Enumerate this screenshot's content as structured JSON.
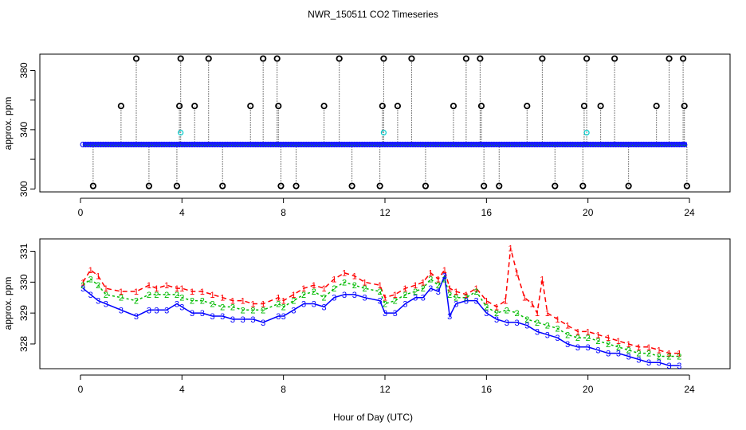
{
  "chart_data": [
    {
      "type": "scatter",
      "panel": "top",
      "title": "NWR_150511  CO2 Timeseries",
      "xlabel": "",
      "ylabel": "approx. ppm",
      "xlim": [
        -1.6,
        25.6
      ],
      "ylim": [
        298,
        391
      ],
      "x_ticks": [
        0,
        4,
        8,
        12,
        16,
        20,
        24
      ],
      "y_ticks": [
        300,
        340,
        380
      ],
      "y_ticks_minor": [
        320,
        360
      ],
      "grid": false,
      "baseline_ppm": 330,
      "baseline_x": [
        0.1,
        23.9
      ],
      "colors": {
        "baseline": "#1a1aff",
        "lines": "#00aa00",
        "spike": "#000000",
        "cyan": "#00cccc"
      },
      "spikes": [
        {
          "x": 0.5,
          "y": 302
        },
        {
          "x": 1.6,
          "y": 356
        },
        {
          "x": 2.2,
          "y": 388
        },
        {
          "x": 2.7,
          "y": 302
        },
        {
          "x": 3.8,
          "y": 302
        },
        {
          "x": 3.9,
          "y": 356
        },
        {
          "x": 3.95,
          "y": 388
        },
        {
          "x": 4.5,
          "y": 356
        },
        {
          "x": 5.05,
          "y": 388
        },
        {
          "x": 5.6,
          "y": 302
        },
        {
          "x": 6.7,
          "y": 356
        },
        {
          "x": 7.2,
          "y": 388
        },
        {
          "x": 7.75,
          "y": 388
        },
        {
          "x": 7.8,
          "y": 356
        },
        {
          "x": 7.9,
          "y": 302
        },
        {
          "x": 8.5,
          "y": 302
        },
        {
          "x": 9.6,
          "y": 356
        },
        {
          "x": 10.2,
          "y": 388
        },
        {
          "x": 10.7,
          "y": 302
        },
        {
          "x": 11.8,
          "y": 302
        },
        {
          "x": 11.9,
          "y": 356
        },
        {
          "x": 11.95,
          "y": 388
        },
        {
          "x": 12.5,
          "y": 356
        },
        {
          "x": 13.05,
          "y": 388
        },
        {
          "x": 13.6,
          "y": 302
        },
        {
          "x": 14.7,
          "y": 356
        },
        {
          "x": 15.2,
          "y": 388
        },
        {
          "x": 15.75,
          "y": 388
        },
        {
          "x": 15.8,
          "y": 356
        },
        {
          "x": 15.9,
          "y": 302
        },
        {
          "x": 16.5,
          "y": 302
        },
        {
          "x": 17.6,
          "y": 356
        },
        {
          "x": 18.2,
          "y": 388
        },
        {
          "x": 18.7,
          "y": 302
        },
        {
          "x": 19.8,
          "y": 302
        },
        {
          "x": 19.85,
          "y": 356
        },
        {
          "x": 19.95,
          "y": 388
        },
        {
          "x": 20.5,
          "y": 356
        },
        {
          "x": 21.05,
          "y": 388
        },
        {
          "x": 21.6,
          "y": 302
        },
        {
          "x": 22.7,
          "y": 356
        },
        {
          "x": 23.2,
          "y": 388
        },
        {
          "x": 23.75,
          "y": 388
        },
        {
          "x": 23.8,
          "y": 356
        },
        {
          "x": 23.9,
          "y": 302
        }
      ],
      "cyan_points": [
        {
          "x": 3.95,
          "y": 338
        },
        {
          "x": 11.95,
          "y": 338
        },
        {
          "x": 19.95,
          "y": 338
        }
      ]
    },
    {
      "type": "line",
      "panel": "bottom",
      "title": "",
      "xlabel": "Hour of Day (UTC)",
      "ylabel": "approx. ppm",
      "xlim": [
        -1.6,
        25.6
      ],
      "ylim": [
        327.2,
        331.4
      ],
      "x_ticks": [
        0,
        4,
        8,
        12,
        16,
        20,
        24
      ],
      "y_ticks": [
        328,
        329,
        330,
        331
      ],
      "grid": false,
      "series": [
        {
          "name": "1",
          "marker": "1",
          "color": "#ff0000",
          "x": [
            0.1,
            0.4,
            0.7,
            1.0,
            1.6,
            2.2,
            2.7,
            3.0,
            3.4,
            3.8,
            4.0,
            4.4,
            4.8,
            5.2,
            5.6,
            6.0,
            6.4,
            6.8,
            7.2,
            7.8,
            8.0,
            8.4,
            8.8,
            9.2,
            9.6,
            10.0,
            10.4,
            10.8,
            11.2,
            11.8,
            12.0,
            12.4,
            12.8,
            13.2,
            13.5,
            13.8,
            14.1,
            14.35,
            14.55,
            14.8,
            15.2,
            15.6,
            16.0,
            16.4,
            16.75,
            16.95,
            17.2,
            17.5,
            17.8,
            18.0,
            18.2,
            18.4,
            18.8,
            19.2,
            19.6,
            20.0,
            20.4,
            20.8,
            21.2,
            21.6,
            22.0,
            22.4,
            22.8,
            23.2,
            23.6
          ],
          "values": [
            330.0,
            330.4,
            330.2,
            329.8,
            329.7,
            329.7,
            329.9,
            329.8,
            329.9,
            329.8,
            329.8,
            329.7,
            329.7,
            329.6,
            329.5,
            329.4,
            329.4,
            329.3,
            329.3,
            329.5,
            329.4,
            329.6,
            329.8,
            329.9,
            329.8,
            330.1,
            330.3,
            330.2,
            330.0,
            329.9,
            329.5,
            329.6,
            329.8,
            329.9,
            330.0,
            330.3,
            330.1,
            330.4,
            329.8,
            329.7,
            329.6,
            329.8,
            329.4,
            329.2,
            329.4,
            331.1,
            330.3,
            329.5,
            329.3,
            329.0,
            330.1,
            329.0,
            328.8,
            328.6,
            328.4,
            328.4,
            328.3,
            328.2,
            328.1,
            328.0,
            327.9,
            327.9,
            327.8,
            327.7,
            327.7
          ]
        },
        {
          "name": "2",
          "marker": "2",
          "color": "#00bb00",
          "x": [
            0.1,
            0.4,
            0.7,
            1.0,
            1.6,
            2.2,
            2.7,
            3.0,
            3.4,
            3.8,
            4.0,
            4.4,
            4.8,
            5.2,
            5.6,
            6.0,
            6.4,
            6.8,
            7.2,
            7.8,
            8.0,
            8.4,
            8.8,
            9.2,
            9.6,
            10.0,
            10.4,
            10.8,
            11.2,
            11.8,
            12.0,
            12.4,
            12.8,
            13.2,
            13.5,
            13.8,
            14.1,
            14.35,
            14.55,
            14.8,
            15.2,
            15.6,
            16.0,
            16.4,
            16.8,
            17.2,
            17.6,
            18.0,
            18.4,
            18.8,
            19.2,
            19.6,
            20.0,
            20.4,
            20.8,
            21.2,
            21.6,
            22.0,
            22.4,
            22.8,
            23.2,
            23.6
          ],
          "values": [
            329.9,
            330.1,
            329.9,
            329.6,
            329.5,
            329.4,
            329.6,
            329.6,
            329.6,
            329.6,
            329.5,
            329.4,
            329.4,
            329.3,
            329.2,
            329.2,
            329.1,
            329.1,
            329.1,
            329.3,
            329.2,
            329.4,
            329.6,
            329.7,
            329.5,
            329.8,
            330.0,
            329.9,
            329.8,
            329.7,
            329.3,
            329.4,
            329.6,
            329.7,
            329.8,
            330.1,
            329.9,
            330.1,
            329.6,
            329.5,
            329.5,
            329.7,
            329.2,
            329.0,
            329.1,
            329.0,
            328.8,
            328.7,
            328.6,
            328.5,
            328.3,
            328.2,
            328.2,
            328.1,
            328.0,
            327.9,
            327.8,
            327.7,
            327.7,
            327.6,
            327.6,
            327.6
          ]
        },
        {
          "name": "3",
          "marker": "3",
          "color": "#0000ff",
          "x": [
            0.1,
            0.4,
            0.7,
            1.0,
            1.6,
            2.2,
            2.7,
            3.0,
            3.4,
            3.8,
            4.0,
            4.4,
            4.8,
            5.2,
            5.6,
            6.0,
            6.4,
            6.8,
            7.2,
            7.8,
            8.0,
            8.4,
            8.8,
            9.2,
            9.6,
            10.0,
            10.4,
            10.8,
            11.2,
            11.8,
            12.0,
            12.4,
            12.8,
            13.2,
            13.5,
            13.8,
            14.1,
            14.35,
            14.55,
            14.8,
            15.2,
            15.6,
            16.0,
            16.4,
            16.8,
            17.2,
            17.6,
            18.0,
            18.4,
            18.8,
            19.2,
            19.6,
            20.0,
            20.4,
            20.8,
            21.2,
            21.6,
            22.0,
            22.4,
            22.8,
            23.2,
            23.6
          ],
          "values": [
            329.8,
            329.6,
            329.4,
            329.3,
            329.1,
            328.9,
            329.1,
            329.1,
            329.1,
            329.3,
            329.2,
            329.0,
            329.0,
            328.9,
            328.9,
            328.8,
            328.8,
            328.8,
            328.7,
            328.9,
            328.9,
            329.1,
            329.3,
            329.3,
            329.2,
            329.5,
            329.6,
            329.6,
            329.5,
            329.4,
            329.0,
            329.0,
            329.3,
            329.5,
            329.5,
            329.8,
            329.7,
            330.2,
            328.9,
            329.3,
            329.4,
            329.4,
            329.0,
            328.8,
            328.7,
            328.7,
            328.6,
            328.4,
            328.3,
            328.2,
            328.0,
            327.9,
            327.9,
            327.8,
            327.7,
            327.7,
            327.6,
            327.5,
            327.4,
            327.4,
            327.3,
            327.3
          ]
        }
      ]
    }
  ]
}
